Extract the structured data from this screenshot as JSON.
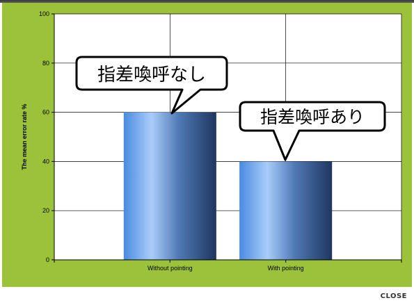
{
  "chart_data": {
    "type": "bar",
    "categories": [
      "Without pointing",
      "With pointing"
    ],
    "values": [
      60,
      40
    ],
    "ylabel": "The mean error rate %",
    "xlabel": "",
    "ylim": [
      0,
      100
    ],
    "yticks": [
      0,
      20,
      40,
      60,
      80,
      100
    ],
    "grid": true,
    "annotations": [
      "指差喚呼なし",
      "指差喚呼あり"
    ]
  },
  "colors": {
    "background": "#9cc13a",
    "plot_area": "#ffffff",
    "gridline": "#000000",
    "bar_light": "#a9cdfa",
    "bar_mid": "#5a9ae6",
    "bar_dark": "#1e3760"
  },
  "footer": {
    "close_label": "CLOSE"
  }
}
